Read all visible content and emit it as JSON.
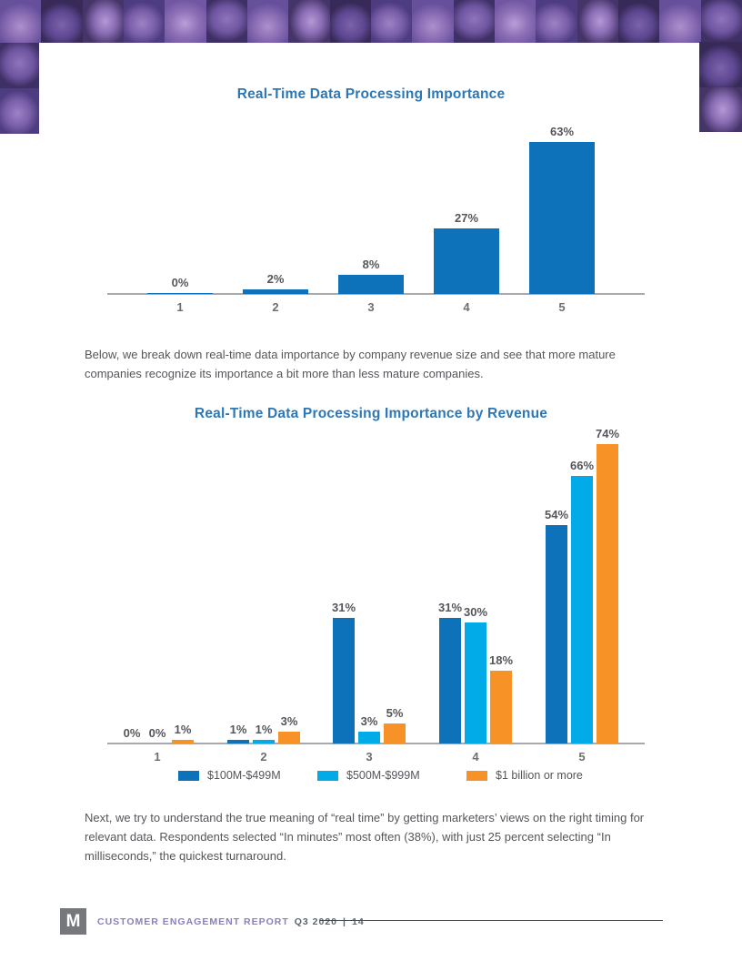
{
  "titles": {
    "chart1": "Real-Time Data Processing Importance",
    "chart2": "Real-Time Data Processing Importance by Revenue"
  },
  "paragraphs": {
    "between_charts": "Below, we break down real-time data importance by company revenue size and see that more mature companies recognize its importance a bit more than less mature companies.",
    "after_charts": "Next, we try to understand the true meaning of “real time” by getting marketers’ views on the right timing for relevant data. Respondents selected “In minutes” most often (38%), with just 25 percent selecting “In milliseconds,” the quickest turnaround."
  },
  "chart_data": [
    {
      "type": "bar",
      "title": "Real-Time Data Processing Importance",
      "categories": [
        "1",
        "2",
        "3",
        "4",
        "5"
      ],
      "values": [
        0,
        2,
        8,
        27,
        63
      ],
      "value_labels": [
        "0%",
        "2%",
        "8%",
        "27%",
        "63%"
      ],
      "bar_color": "#0d72b9",
      "xlabel": "",
      "ylabel": "",
      "ylim": [
        0,
        70
      ],
      "grid": false,
      "legend_position": "none"
    },
    {
      "type": "bar",
      "title": "Real-Time Data Processing Importance by Revenue",
      "categories": [
        "1",
        "2",
        "3",
        "4",
        "5"
      ],
      "series": [
        {
          "name": "$100M-$499M",
          "color": "#0d72b9",
          "values": [
            0,
            1,
            31,
            31,
            54
          ],
          "labels": [
            "0%",
            "1%",
            "31%",
            "31%",
            "54%"
          ]
        },
        {
          "name": "$500M-$999M",
          "color": "#00abe8",
          "values": [
            0,
            1,
            3,
            30,
            66
          ],
          "labels": [
            "0%",
            "1%",
            "3%",
            "30%",
            "66%"
          ]
        },
        {
          "name": "$1 billion or more",
          "color": "#f79226",
          "values": [
            1,
            3,
            5,
            18,
            74
          ],
          "labels": [
            "1%",
            "3%",
            "5%",
            "18%",
            "74%"
          ]
        }
      ],
      "xlabel": "",
      "ylabel": "",
      "ylim": [
        0,
        80
      ],
      "grid": false,
      "legend_position": "bottom"
    }
  ],
  "colors": {
    "title_blue": "#2e77b5",
    "dark_blue": "#0d72b9",
    "light_blue": "#00abe8",
    "orange": "#f79226",
    "axis_gray": "#a7a9ac",
    "body_text": "#54565a",
    "banner_purple": "#7c5fad"
  },
  "footer": {
    "logo_text": "M",
    "report_title": "CUSTOMER ENGAGEMENT REPORT",
    "edition": "Q3 2020",
    "separator": "|",
    "page_number": "14"
  }
}
